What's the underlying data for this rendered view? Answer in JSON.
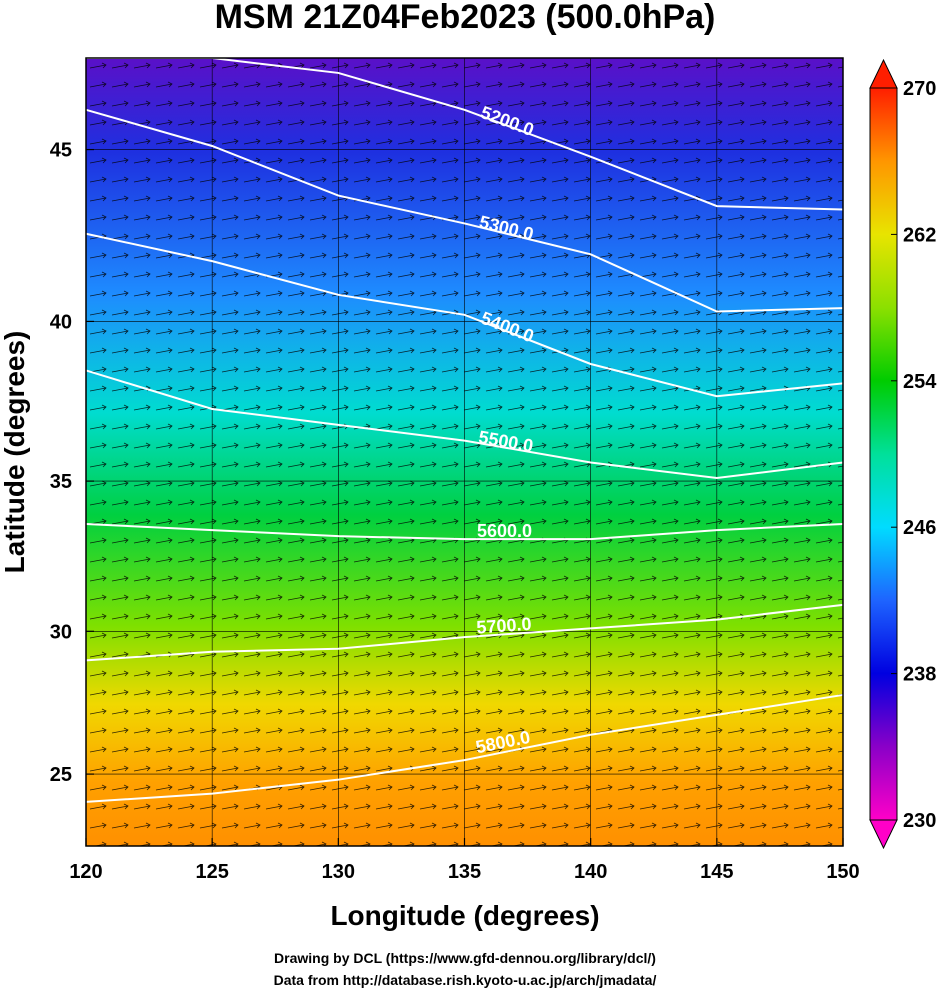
{
  "chart_data": {
    "type": "contour_map",
    "title": "MSM 21Z04Feb2023 (500.0hPa)",
    "x_label": "Longitude (degrees)",
    "y_label": "Latitude  (degrees)",
    "projection": "mercator",
    "xlim": [
      120,
      150
    ],
    "ylim": [
      22.4,
      47.5
    ],
    "xticks": [
      120,
      125,
      130,
      135,
      140,
      145,
      150
    ],
    "yticks": [
      25,
      30,
      35,
      40,
      45
    ],
    "grid": true,
    "contour_lon": [
      120,
      125,
      130,
      135,
      140,
      145,
      150
    ],
    "contours": [
      {
        "value": 5200,
        "label": "5200.0",
        "lat": [
          47.5,
          47.5,
          47.1,
          46.1,
          44.8,
          43.4,
          43.3
        ]
      },
      {
        "value": 5300,
        "label": "5300.0",
        "lat": [
          46.1,
          45.1,
          43.7,
          42.9,
          42.0,
          40.3,
          40.4
        ]
      },
      {
        "value": 5400,
        "label": "5400.0",
        "lat": [
          42.6,
          41.8,
          40.8,
          40.2,
          38.7,
          37.7,
          38.1
        ]
      },
      {
        "value": 5500,
        "label": "5500.0",
        "lat": [
          38.5,
          37.3,
          36.8,
          36.3,
          35.6,
          35.1,
          35.6
        ]
      },
      {
        "value": 5600,
        "label": "5600.0",
        "lat": [
          33.6,
          33.4,
          33.2,
          33.1,
          33.1,
          33.4,
          33.6
        ]
      },
      {
        "value": 5700,
        "label": "5700.0",
        "lat": [
          29.0,
          29.3,
          29.4,
          29.8,
          30.1,
          30.4,
          30.9
        ]
      },
      {
        "value": 5800,
        "label": "5800.0",
        "lat": [
          24.0,
          24.3,
          24.8,
          25.5,
          26.4,
          27.1,
          27.8
        ]
      }
    ],
    "contour_color": "#ffffff",
    "colorbar": {
      "lim": [
        230,
        270
      ],
      "ticks": [
        230,
        238,
        246,
        254,
        262,
        270
      ],
      "colors": [
        "#ff00c8",
        "#8a00c8",
        "#0000e0",
        "#1e64ff",
        "#00dcff",
        "#00e09a",
        "#00cc00",
        "#8ce000",
        "#e8e400",
        "#ff9600",
        "#ff1e00"
      ]
    },
    "footer": [
      "Drawing by DCL (https://www.gfd-dennou.org/library/dcl/)",
      "Data from http://database.rish.kyoto-u.ac.jp/arch/jmadata/"
    ]
  }
}
